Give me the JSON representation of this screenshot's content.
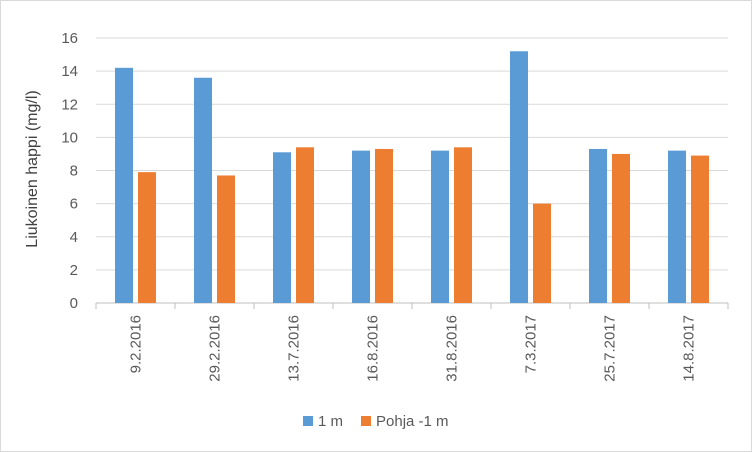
{
  "chart_data": {
    "type": "bar",
    "title": "",
    "xlabel": "",
    "ylabel": "Liukoinen happi (mg/l)",
    "ylim": [
      0,
      16
    ],
    "yticks": [
      0,
      2,
      4,
      6,
      8,
      10,
      12,
      14,
      16
    ],
    "grid": true,
    "legend_position": "bottom",
    "categories": [
      "9.2.2016",
      "29.2.2016",
      "13.7.2016",
      "16.8.2016",
      "31.8.2016",
      "7.3.2017",
      "25.7.2017",
      "14.8.2017"
    ],
    "series": [
      {
        "name": "1 m",
        "color": "#5b9bd5",
        "values": [
          14.2,
          13.6,
          9.1,
          9.2,
          9.2,
          15.2,
          9.3,
          9.2
        ]
      },
      {
        "name": "Pohja -1 m",
        "color": "#ed7d31",
        "values": [
          7.9,
          7.7,
          9.4,
          9.3,
          9.4,
          6.0,
          9.0,
          8.9
        ]
      }
    ]
  }
}
